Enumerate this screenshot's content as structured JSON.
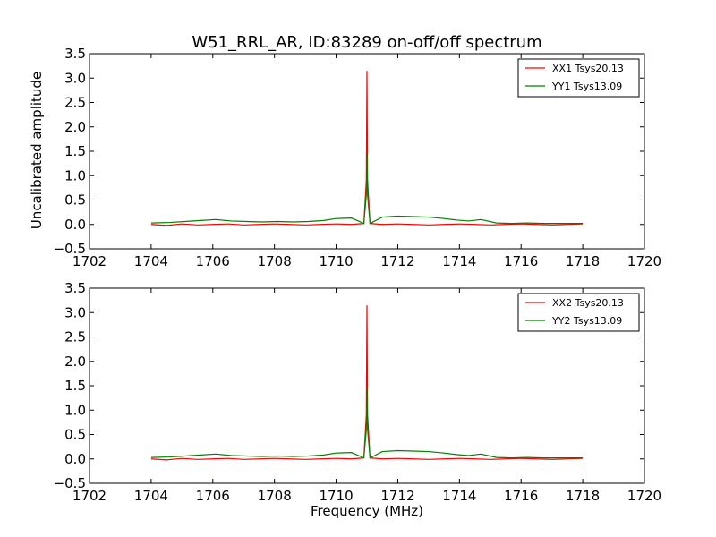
{
  "chart_data": [
    {
      "type": "line",
      "title": "W51_RRL_AR, ID:83289 on-off/off spectrum",
      "xlabel": "",
      "ylabel": "Uncalibrated amplitude",
      "xlim": [
        1702,
        1720
      ],
      "ylim": [
        -0.5,
        3.5
      ],
      "xticks": [
        "1702",
        "1704",
        "1706",
        "1708",
        "1710",
        "1712",
        "1714",
        "1716",
        "1718",
        "1720"
      ],
      "yticks": [
        "−0.5",
        "0.0",
        "0.5",
        "1.0",
        "1.5",
        "2.0",
        "2.5",
        "3.0",
        "3.5"
      ],
      "grid": false,
      "legend_position": "top-right",
      "series": [
        {
          "name": "XX1 Tsys20.13",
          "color": "#ff0000",
          "x": [
            1704.0,
            1704.5,
            1705.0,
            1705.5,
            1706.0,
            1706.5,
            1707.0,
            1707.5,
            1708.0,
            1708.5,
            1709.0,
            1709.5,
            1710.0,
            1710.5,
            1710.9,
            1710.98,
            1711.0,
            1711.02,
            1711.1,
            1711.5,
            1712.0,
            1712.5,
            1713.0,
            1713.5,
            1714.0,
            1714.5,
            1715.0,
            1715.5,
            1716.0,
            1716.5,
            1717.0,
            1717.5,
            1718.0
          ],
          "y": [
            0.0,
            -0.02,
            0.01,
            -0.01,
            0.0,
            0.01,
            -0.01,
            0.0,
            0.01,
            0.0,
            -0.01,
            0.0,
            0.01,
            0.0,
            0.02,
            0.9,
            3.15,
            0.9,
            0.02,
            0.0,
            0.01,
            0.0,
            -0.01,
            0.0,
            0.01,
            0.0,
            -0.01,
            0.0,
            0.01,
            0.0,
            -0.01,
            0.0,
            0.01
          ]
        },
        {
          "name": "YY1 Tsys13.09",
          "color": "#008000",
          "x": [
            1704.0,
            1704.6,
            1705.1,
            1705.6,
            1706.1,
            1706.6,
            1707.1,
            1707.6,
            1708.1,
            1708.6,
            1709.1,
            1709.6,
            1710.0,
            1710.5,
            1710.9,
            1710.98,
            1711.0,
            1711.02,
            1711.1,
            1711.5,
            1712.0,
            1712.5,
            1713.0,
            1713.5,
            1713.9,
            1714.3,
            1714.7,
            1715.2,
            1715.7,
            1716.2,
            1716.7,
            1717.2,
            1718.0
          ],
          "y": [
            0.03,
            0.04,
            0.06,
            0.08,
            0.1,
            0.07,
            0.06,
            0.05,
            0.06,
            0.05,
            0.06,
            0.08,
            0.12,
            0.13,
            0.02,
            0.6,
            1.45,
            0.6,
            0.02,
            0.15,
            0.17,
            0.16,
            0.15,
            0.12,
            0.09,
            0.07,
            0.1,
            0.03,
            0.02,
            0.03,
            0.02,
            0.02,
            0.02
          ]
        }
      ]
    },
    {
      "type": "line",
      "title": "",
      "xlabel": "Frequency (MHz)",
      "ylabel": "",
      "xlim": [
        1702,
        1720
      ],
      "ylim": [
        -0.5,
        3.5
      ],
      "xticks": [
        "1702",
        "1704",
        "1706",
        "1708",
        "1710",
        "1712",
        "1714",
        "1716",
        "1718",
        "1720"
      ],
      "yticks": [
        "−0.5",
        "0.0",
        "0.5",
        "1.0",
        "1.5",
        "2.0",
        "2.5",
        "3.0",
        "3.5"
      ],
      "grid": false,
      "legend_position": "top-right",
      "series": [
        {
          "name": "XX2 Tsys20.13",
          "color": "#ff0000",
          "x": [
            1704.0,
            1704.5,
            1705.0,
            1705.5,
            1706.0,
            1706.5,
            1707.0,
            1707.5,
            1708.0,
            1708.5,
            1709.0,
            1709.5,
            1710.0,
            1710.5,
            1710.9,
            1710.98,
            1711.0,
            1711.02,
            1711.1,
            1711.5,
            1712.0,
            1712.5,
            1713.0,
            1713.5,
            1714.0,
            1714.5,
            1715.0,
            1715.5,
            1716.0,
            1716.5,
            1717.0,
            1717.5,
            1718.0
          ],
          "y": [
            0.0,
            -0.02,
            0.01,
            -0.01,
            0.0,
            0.01,
            -0.01,
            0.0,
            0.01,
            0.0,
            -0.01,
            0.0,
            0.01,
            0.0,
            0.02,
            0.9,
            3.15,
            0.9,
            0.02,
            0.0,
            0.01,
            0.0,
            -0.01,
            0.0,
            0.01,
            0.0,
            -0.01,
            0.0,
            0.01,
            0.0,
            -0.01,
            0.0,
            0.01
          ]
        },
        {
          "name": "YY2 Tsys13.09",
          "color": "#008000",
          "x": [
            1704.0,
            1704.6,
            1705.1,
            1705.6,
            1706.1,
            1706.6,
            1707.1,
            1707.6,
            1708.1,
            1708.6,
            1709.1,
            1709.6,
            1710.0,
            1710.5,
            1710.9,
            1710.98,
            1711.0,
            1711.02,
            1711.1,
            1711.5,
            1712.0,
            1712.5,
            1713.0,
            1713.5,
            1713.9,
            1714.3,
            1714.7,
            1715.2,
            1715.7,
            1716.2,
            1716.7,
            1717.2,
            1718.0
          ],
          "y": [
            0.03,
            0.04,
            0.06,
            0.08,
            0.1,
            0.07,
            0.06,
            0.05,
            0.06,
            0.05,
            0.06,
            0.08,
            0.12,
            0.13,
            0.02,
            0.6,
            1.45,
            0.6,
            0.02,
            0.15,
            0.17,
            0.16,
            0.15,
            0.12,
            0.09,
            0.07,
            0.1,
            0.03,
            0.02,
            0.03,
            0.02,
            0.02,
            0.02
          ]
        }
      ]
    }
  ]
}
